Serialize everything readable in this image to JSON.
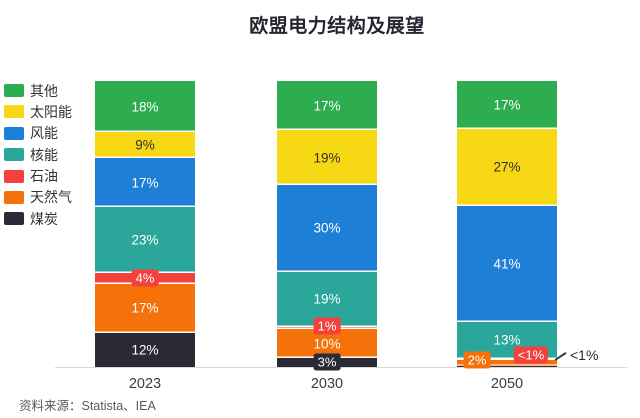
{
  "title": "欧盟电力结构及展望",
  "source": "资料来源：Statista、IEA",
  "colors": {
    "background": "#ffffff",
    "axis_line": "#d9d9d9",
    "title_text": "#262630",
    "legend_text": "#333333",
    "source_text": "#595959"
  },
  "chart_data": {
    "type": "bar",
    "stacked": true,
    "title": "欧盟电力结构及展望",
    "unit": "%",
    "ylim": [
      0,
      100
    ],
    "grid": false,
    "legend_position": "left",
    "stack_order": "top-to-bottom",
    "categories": [
      "2023",
      "2030",
      "2050"
    ],
    "series": [
      {
        "key": "other",
        "name": "其他",
        "color": "#2dad4f",
        "label_color": "#ffffff",
        "values": [
          18,
          17,
          17
        ],
        "labels": [
          "18%",
          "17%",
          "17%"
        ],
        "label_styles": [
          "inside",
          "inside",
          "inside"
        ],
        "label_offsets": [
          [
            0,
            0
          ],
          [
            0,
            0
          ],
          [
            0,
            0
          ]
        ]
      },
      {
        "key": "solar",
        "name": "太阳能",
        "color": "#f7d814",
        "label_color": "#2f2f2f",
        "values": [
          9,
          19,
          27
        ],
        "labels": [
          "9%",
          "19%",
          "27%"
        ],
        "label_styles": [
          "inside",
          "inside",
          "inside"
        ],
        "label_offsets": [
          [
            0,
            0
          ],
          [
            0,
            0
          ],
          [
            0,
            0
          ]
        ]
      },
      {
        "key": "wind",
        "name": "风能",
        "color": "#1e7fd6",
        "label_color": "#ffffff",
        "values": [
          17,
          30,
          41
        ],
        "labels": [
          "17%",
          "30%",
          "41%"
        ],
        "label_styles": [
          "inside",
          "inside",
          "inside"
        ],
        "label_offsets": [
          [
            0,
            0
          ],
          [
            0,
            0
          ],
          [
            0,
            0
          ]
        ]
      },
      {
        "key": "nuclear",
        "name": "核能",
        "color": "#2aa79a",
        "label_color": "#ffffff",
        "values": [
          23,
          19,
          13
        ],
        "labels": [
          "23%",
          "19%",
          "13%"
        ],
        "label_styles": [
          "inside",
          "inside",
          "inside"
        ],
        "label_offsets": [
          [
            0,
            0
          ],
          [
            0,
            0
          ],
          [
            0,
            0
          ]
        ]
      },
      {
        "key": "oil",
        "name": "石油",
        "color": "#f5413e",
        "label_color": "#ffffff",
        "values": [
          4,
          1,
          0.5
        ],
        "labels": [
          "4%",
          "1%",
          "<1%"
        ],
        "label_styles": [
          "badge",
          "badge",
          "badge"
        ],
        "label_offsets": [
          [
            0,
            0
          ],
          [
            0,
            -2
          ],
          [
            24,
            -4
          ]
        ]
      },
      {
        "key": "gas",
        "name": "天然气",
        "color": "#f57109",
        "label_color": "#ffffff",
        "values": [
          17,
          10,
          2
        ],
        "labels": [
          "17%",
          "10%",
          "2%"
        ],
        "label_styles": [
          "inside",
          "inside",
          "badge"
        ],
        "label_offsets": [
          [
            0,
            0
          ],
          [
            0,
            0
          ],
          [
            -30,
            -3
          ]
        ]
      },
      {
        "key": "coal",
        "name": "煤炭",
        "color": "#2a2b36",
        "label_color": "#ffffff",
        "values": [
          12,
          3,
          0.5
        ],
        "labels": [
          "12%",
          "3%",
          "<1%"
        ],
        "label_styles": [
          "inside",
          "badge",
          "outside"
        ],
        "label_offsets": [
          [
            0,
            0
          ],
          [
            0,
            -1
          ],
          [
            13,
            -11
          ]
        ]
      }
    ]
  }
}
